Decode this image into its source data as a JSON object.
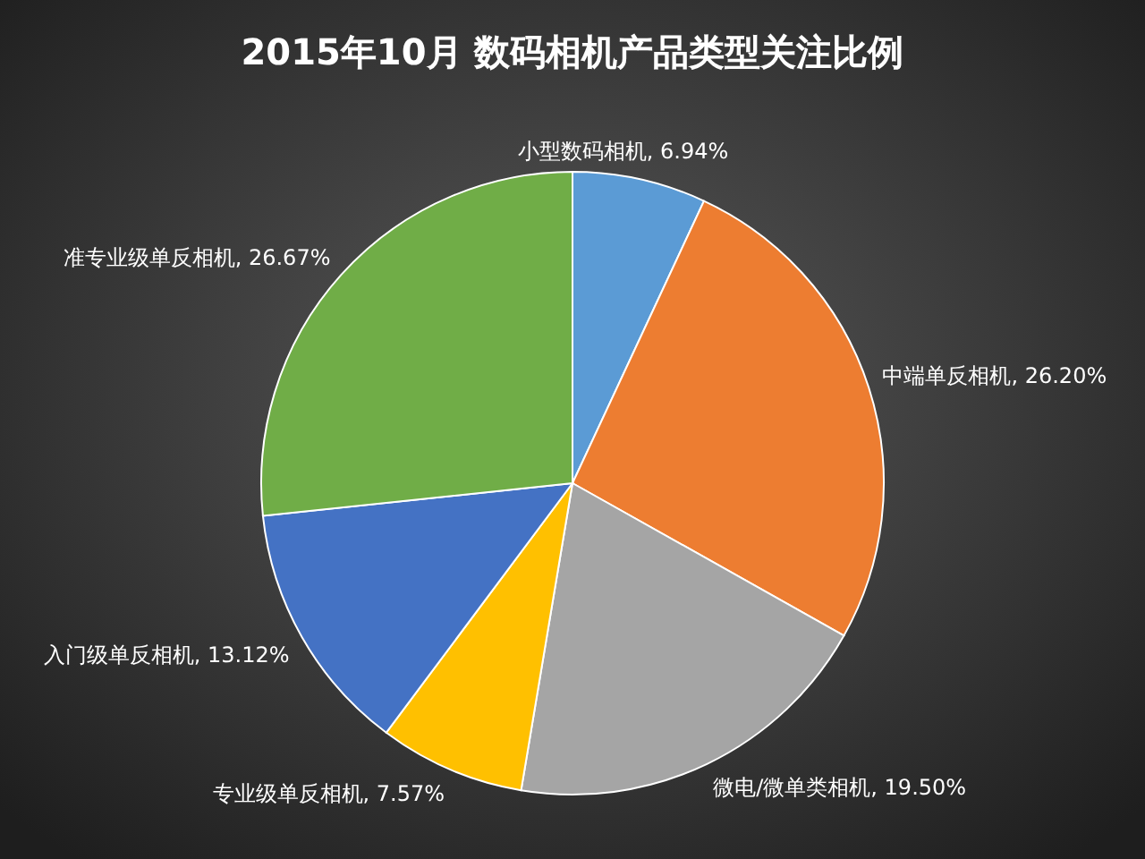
{
  "chart_data": {
    "type": "pie",
    "title": "2015年10月  数码相机产品类型关注比例",
    "categories": [
      "小型数码相机",
      "中端单反相机",
      "微电/微单类相机",
      "专业级单反相机",
      "入门级单反相机",
      "准专业级单反相机"
    ],
    "values": [
      6.94,
      26.2,
      19.5,
      7.57,
      13.12,
      26.67
    ],
    "value_labels": [
      "6.94%",
      "26.20%",
      "19.50%",
      "7.57%",
      "13.12%",
      "26.67%"
    ],
    "colors": [
      "#5b9bd5",
      "#ed7d31",
      "#a5a5a5",
      "#ffc000",
      "#4472c4",
      "#70ad47"
    ]
  }
}
